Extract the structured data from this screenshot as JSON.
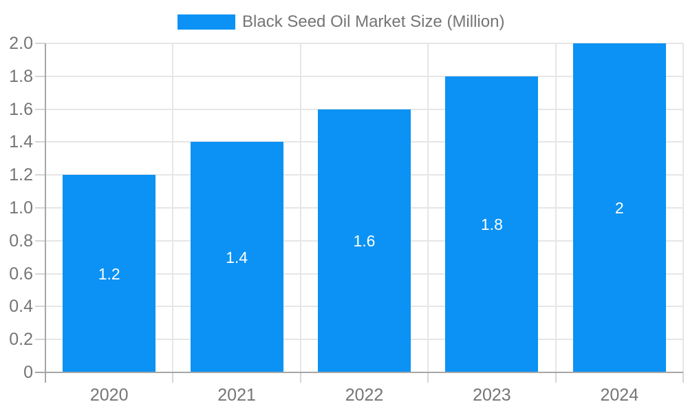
{
  "chart_data": {
    "type": "bar",
    "series_name": "Black Seed Oil Market Size (Million)",
    "categories": [
      "2020",
      "2021",
      "2022",
      "2023",
      "2024"
    ],
    "values": [
      1.2,
      1.4,
      1.6,
      1.8,
      2
    ],
    "bar_labels": [
      "1.2",
      "1.4",
      "1.6",
      "1.8",
      "2"
    ],
    "yticks": [
      "2.0",
      "1.8",
      "1.6",
      "1.4",
      "1.2",
      "1.0",
      "0.8",
      "0.6",
      "0.4",
      "0.2",
      "0"
    ],
    "ylim": [
      0,
      2.0
    ],
    "ytick_step": 0.2,
    "title": "",
    "xlabel": "",
    "ylabel": "",
    "grid": true,
    "legend_position": "top-center",
    "bar_color": "#0B92F4",
    "label_color": "#ffffff",
    "axis_text_color": "#757575",
    "gridline_color": "#E6E6E6",
    "axis_line_color": "#A6A6A6",
    "background_color": "#ffffff"
  }
}
